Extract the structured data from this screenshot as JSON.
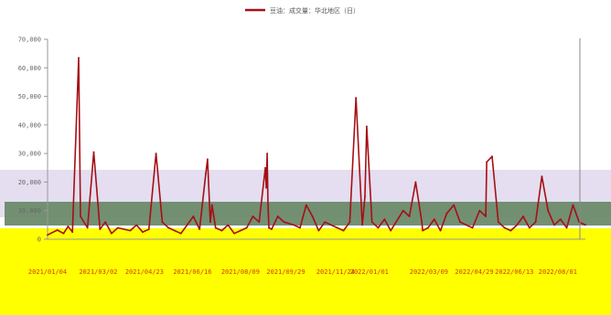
{
  "legend": {
    "label": "豆油：成交量：华北地区（日）",
    "color": "#a50f15"
  },
  "chart_data": {
    "type": "line",
    "series": [
      {
        "name": "豆油：成交量：华北地区（日）",
        "color": "#a50f15",
        "x": [
          "2021/01/04",
          "2021/01/15",
          "2021/01/22",
          "2021/01/27",
          "2021/02/01",
          "2021/02/08",
          "2021/02/10",
          "2021/02/18",
          "2021/02/25",
          "2021/03/04",
          "2021/03/10",
          "2021/03/17",
          "2021/03/24",
          "2021/04/07",
          "2021/04/14",
          "2021/04/21",
          "2021/04/28",
          "2021/05/06",
          "2021/05/13",
          "2021/05/20",
          "2021/05/27",
          "2021/06/03",
          "2021/06/10",
          "2021/06/17",
          "2021/06/24",
          "2021/07/01",
          "2021/07/03",
          "2021/07/06",
          "2021/07/08",
          "2021/07/12",
          "2021/07/19",
          "2021/07/26",
          "2021/08/02",
          "2021/08/09",
          "2021/08/16",
          "2021/08/23",
          "2021/08/30",
          "2021/09/06",
          "2021/09/07",
          "2021/09/08",
          "2021/09/09",
          "2021/09/10",
          "2021/09/13",
          "2021/09/20",
          "2021/09/27",
          "2021/10/08",
          "2021/10/15",
          "2021/10/22",
          "2021/10/29",
          "2021/11/05",
          "2021/11/12",
          "2021/11/19",
          "2021/11/26",
          "2021/12/03",
          "2021/12/10",
          "2021/12/17",
          "2021/12/24",
          "2021/12/27",
          "2021/12/29",
          "2022/01/04",
          "2022/01/11",
          "2022/01/18",
          "2022/01/25",
          "2022/02/08",
          "2022/02/15",
          "2022/02/22",
          "2022/03/01",
          "2022/03/02",
          "2022/03/08",
          "2022/03/15",
          "2022/03/22",
          "2022/03/29",
          "2022/04/06",
          "2022/04/13",
          "2022/04/20",
          "2022/04/27",
          "2022/05/05",
          "2022/05/12",
          "2022/05/13",
          "2022/05/19",
          "2022/05/26",
          "2022/06/02",
          "2022/06/09",
          "2022/06/16",
          "2022/06/23",
          "2022/06/30",
          "2022/07/07",
          "2022/07/14",
          "2022/07/21",
          "2022/07/28",
          "2022/08/04",
          "2022/08/11",
          "2022/08/18",
          "2022/08/25",
          "2022/09/01"
        ],
        "values": [
          1500,
          3200,
          2000,
          4500,
          2500,
          63500,
          8000,
          4000,
          30500,
          3500,
          6000,
          2000,
          4000,
          3000,
          5000,
          2500,
          3500,
          30000,
          6000,
          4000,
          3000,
          2000,
          5000,
          8000,
          3500,
          23000,
          28000,
          6000,
          12000,
          4000,
          3000,
          5000,
          2000,
          3000,
          4000,
          8000,
          6000,
          25000,
          18000,
          30000,
          12000,
          4000,
          3500,
          8000,
          6000,
          5000,
          4000,
          12000,
          8000,
          3000,
          6000,
          5000,
          4000,
          3000,
          6000,
          49500,
          5000,
          15000,
          39500,
          6000,
          4000,
          7000,
          3000,
          10000,
          8000,
          20000,
          6000,
          3000,
          4000,
          7000,
          3000,
          9000,
          12000,
          6000,
          5000,
          4000,
          10000,
          8000,
          27000,
          29000,
          6000,
          4000,
          3000,
          5000,
          8000,
          4000,
          6000,
          22000,
          10000,
          5000,
          7000,
          4000,
          12000,
          6000,
          5000
        ]
      }
    ],
    "ylim": [
      0,
      70000
    ],
    "y_ticks": [
      "0",
      "10,000",
      "20,000",
      "30,000",
      "40,000",
      "50,000",
      "60,000",
      "70,000"
    ],
    "x_ticks": [
      "2021/01/04",
      "2021/03/02",
      "2021/04/23",
      "2021/06/16",
      "2021/08/09",
      "2021/09/29",
      "2021/11/24",
      "2022/01/01",
      "2022/03/09",
      "2022/04/29",
      "2022/06/13",
      "2022/08/01"
    ],
    "grid": false,
    "legend_position": "top-center"
  }
}
